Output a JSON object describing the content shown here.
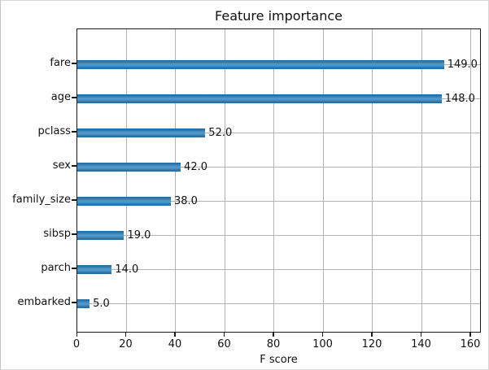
{
  "window": {
    "background": "#ffffff",
    "border_color": "#c4c4c4"
  },
  "chart_data": {
    "type": "bar",
    "orientation": "horizontal",
    "title": "Feature importance",
    "xlabel": "F score",
    "ylabel": "",
    "categories": [
      "fare",
      "age",
      "pclass",
      "sex",
      "family_size",
      "sibsp",
      "parch",
      "embarked"
    ],
    "values": [
      149.0,
      148.0,
      52.0,
      42.0,
      38.0,
      19.0,
      14.0,
      5.0
    ],
    "value_labels": [
      "149.0",
      "148.0",
      "52.0",
      "42.0",
      "38.0",
      "19.0",
      "14.0",
      "5.0"
    ],
    "x_ticks": [
      0,
      20,
      40,
      60,
      80,
      100,
      120,
      140,
      160
    ],
    "xlim": [
      0,
      164.3
    ],
    "grid": true,
    "legend": false,
    "colors": {
      "bar": "#2f7bb1",
      "bar_stripe": "#5096c8",
      "bar_edge": "#27699a",
      "grid": "#b3b3b3",
      "axis": "#1a1a1a",
      "text": "#111111"
    }
  }
}
